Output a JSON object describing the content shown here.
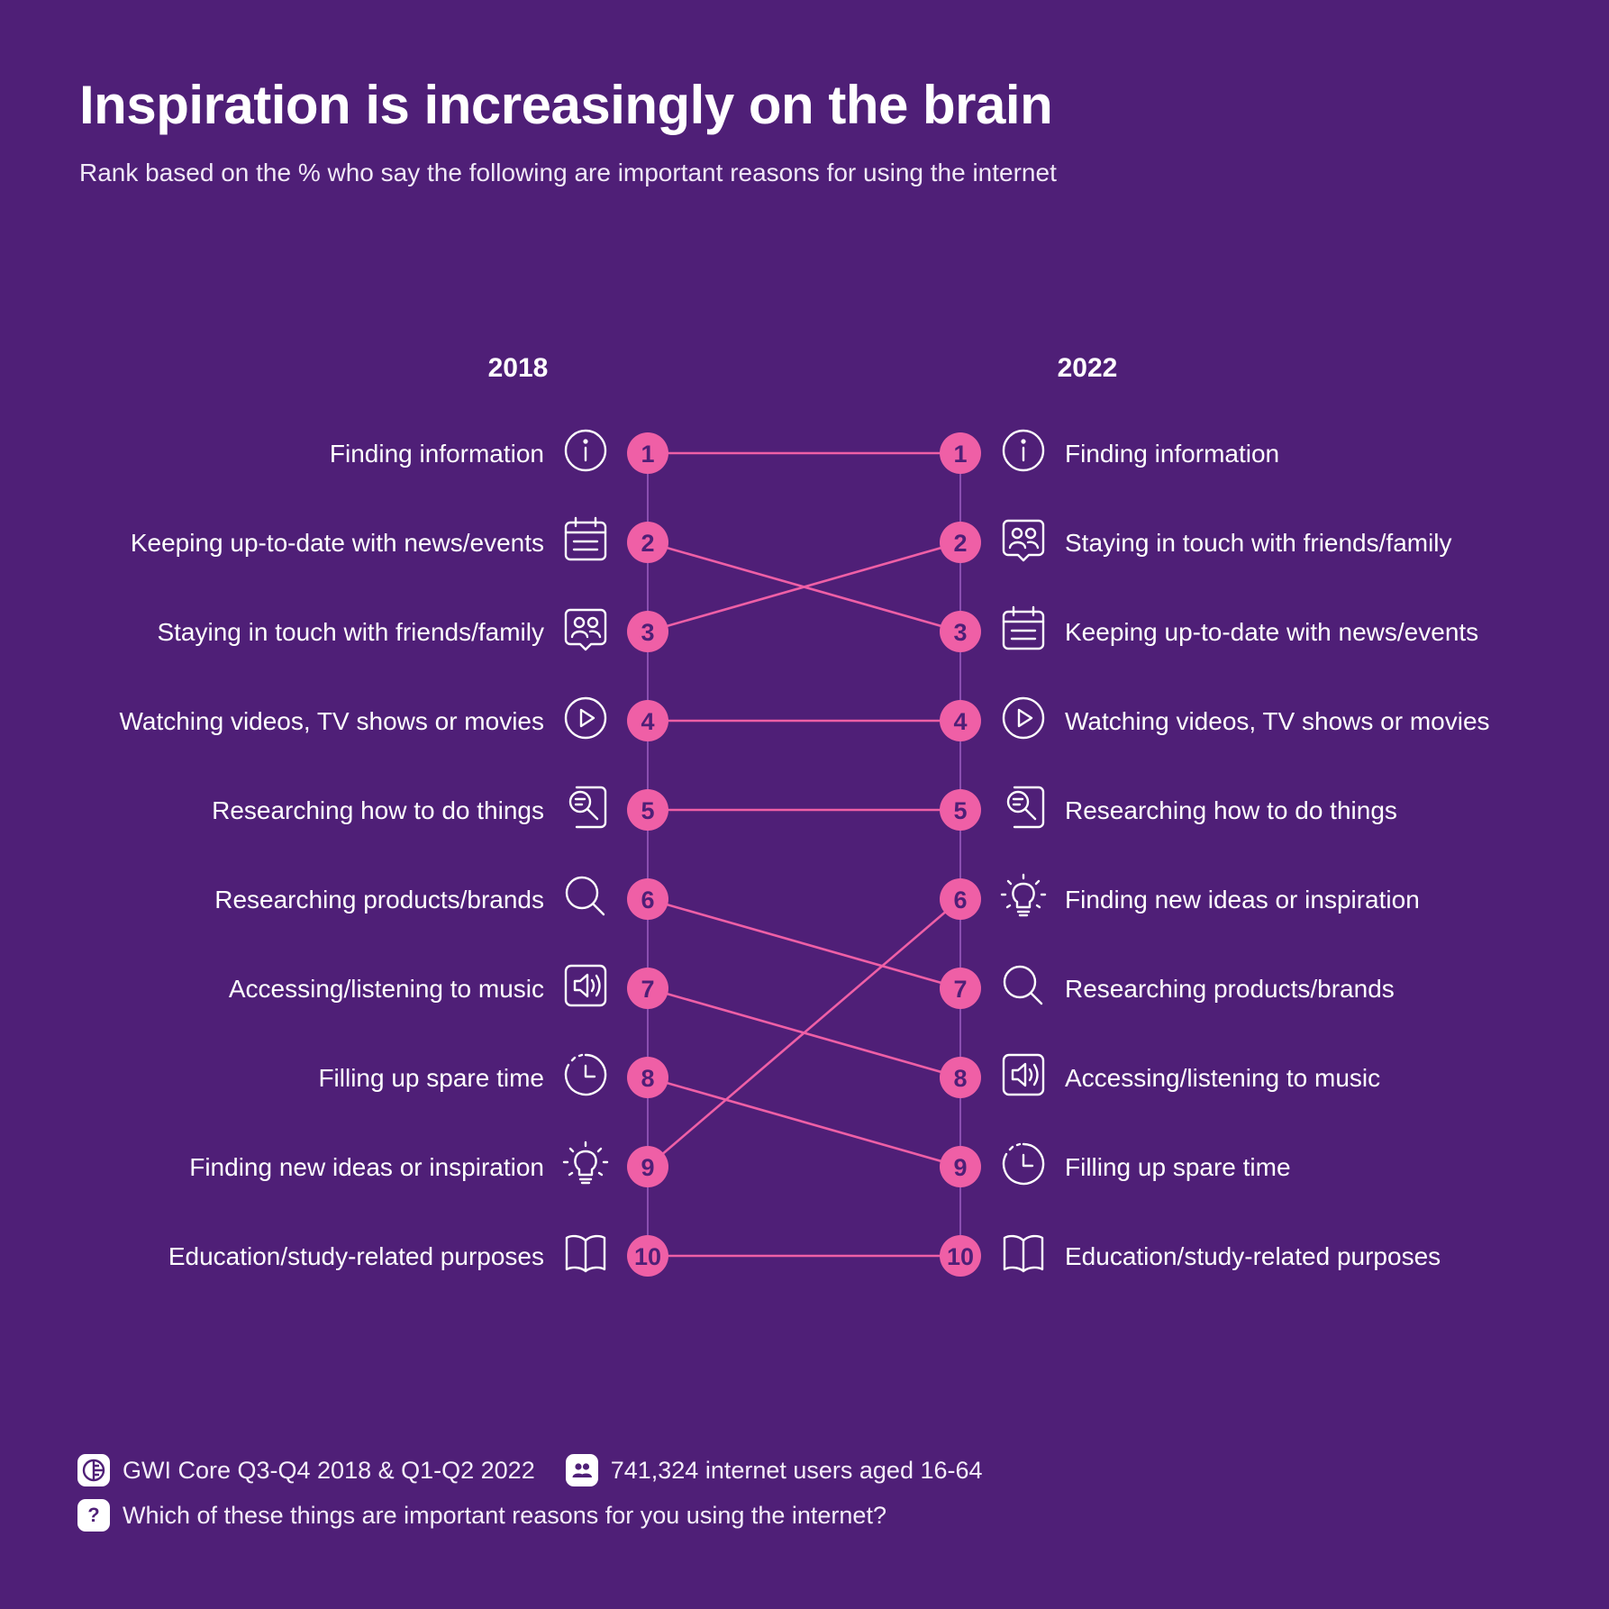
{
  "header": {
    "title": "Inspiration is increasingly on the brain",
    "subtitle": "Rank based on the % who say the following are important reasons for using the internet"
  },
  "colors": {
    "background": "#4f1f77",
    "accent": "#ef5fa6",
    "text": "#ffffff",
    "rank_number": "#4f1f77",
    "axis_line": "#8a4fb0"
  },
  "chart_data": {
    "type": "slope",
    "columns": [
      "2018",
      "2022"
    ],
    "rank_labels": [
      "1",
      "2",
      "3",
      "4",
      "5",
      "6",
      "7",
      "8",
      "9",
      "10"
    ],
    "items": [
      {
        "label": "Finding information",
        "icon": "info-icon",
        "rank_2018": 1,
        "rank_2022": 1
      },
      {
        "label": "Keeping up-to-date with news/events",
        "icon": "calendar-icon",
        "rank_2018": 2,
        "rank_2022": 3
      },
      {
        "label": "Staying in touch with friends/family",
        "icon": "people-chat-icon",
        "rank_2018": 3,
        "rank_2022": 2
      },
      {
        "label": "Watching videos, TV shows or movies",
        "icon": "play-icon",
        "rank_2018": 4,
        "rank_2022": 4
      },
      {
        "label": "Researching how to do things",
        "icon": "research-chat-icon",
        "rank_2018": 5,
        "rank_2022": 5
      },
      {
        "label": "Researching products/brands",
        "icon": "search-icon",
        "rank_2018": 6,
        "rank_2022": 7
      },
      {
        "label": "Accessing/listening to music",
        "icon": "speaker-icon",
        "rank_2018": 7,
        "rank_2022": 8
      },
      {
        "label": "Filling up spare time",
        "icon": "clock-icon",
        "rank_2018": 8,
        "rank_2022": 9
      },
      {
        "label": "Finding new ideas or inspiration",
        "icon": "lightbulb-icon",
        "rank_2018": 9,
        "rank_2022": 6
      },
      {
        "label": "Education/study-related purposes",
        "icon": "book-icon",
        "rank_2018": 10,
        "rank_2022": 10
      }
    ]
  },
  "footer": {
    "source": "GWI Core Q3-Q4 2018 & Q1-Q2 2022",
    "source_icon": "gwi-logo-icon",
    "sample": "741,324 internet users aged 16-64",
    "sample_icon": "people-icon",
    "question": "Which of these things are important reasons for you using the internet?",
    "question_icon": "question-icon",
    "question_mark": "?"
  }
}
